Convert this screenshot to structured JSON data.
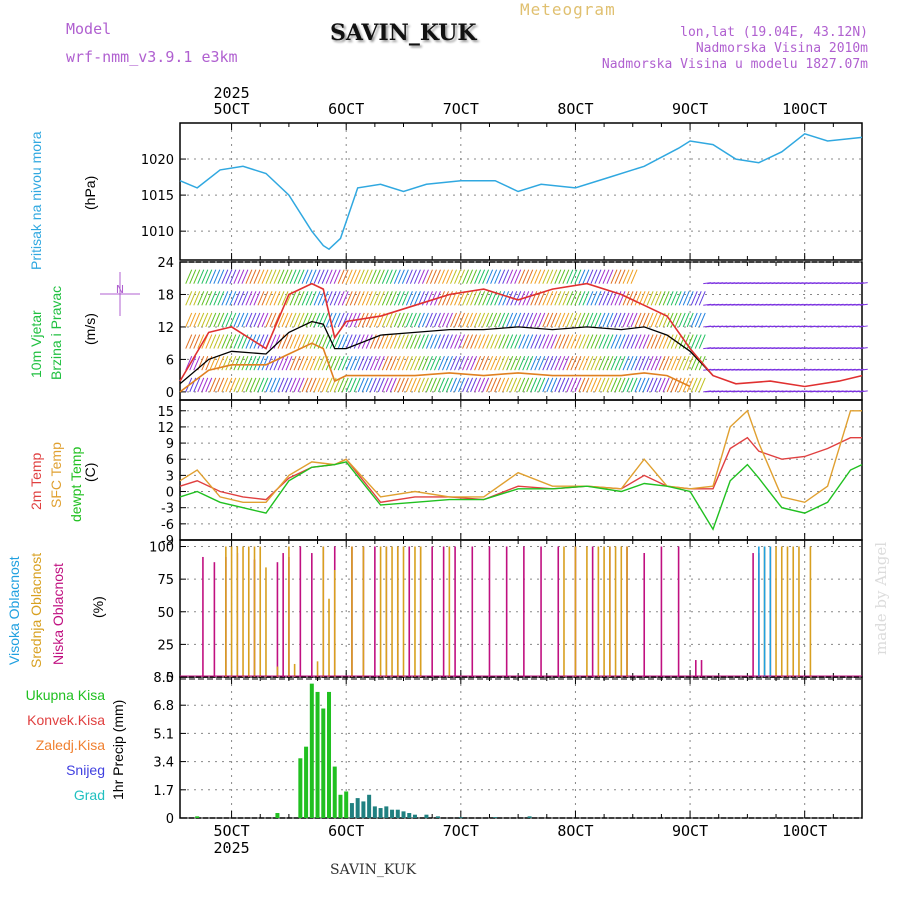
{
  "header": {
    "model_label": "Model",
    "model_name": "wrf-nmm_v3.9.1 e3km",
    "title": "SAVIN_KUK",
    "meteogram_label": "Meteogram",
    "lonlat": "lon,lat (19.04E, 43.12N)",
    "altitude": "Nadmorska Visina 2010m",
    "model_altitude": "Nadmorska Visina u modelu 1827.07m"
  },
  "footer": {
    "station": "SAVIN_KUK",
    "made_by": "made by Angel"
  },
  "colors": {
    "pressure": "#30a8e0",
    "wind_label": "#20c040",
    "mean_wind": "#000000",
    "gust": "#e03030",
    "temp2m": "#e04040",
    "sfc_temp": "#e0a030",
    "dewpt": "#20c020",
    "cloud_high": "#20a0e0",
    "cloud_mid": "#d8a020",
    "cloud_low": "#c01080",
    "precip_total": "#20c020",
    "precip_conv": "#e04040",
    "precip_frozen": "#f08030",
    "precip_snow": "#4040e0",
    "precip_hail": "#20c0c0"
  },
  "chart_data": [
    {
      "type": "line",
      "name": "pressure",
      "title": "Pritisak na nivou mora",
      "ylabel": "(hPa)",
      "ylim": [
        1006,
        1025
      ],
      "yticks": [
        1010,
        1015,
        1020
      ],
      "x_days_top": [
        "5OCT",
        "6OCT",
        "7OCT",
        "8OCT",
        "9OCT",
        "10OCT"
      ],
      "year_label": "2025",
      "x": [
        4.55,
        4.7,
        4.9,
        5.1,
        5.3,
        5.5,
        5.7,
        5.8,
        5.85,
        5.95,
        6.1,
        6.3,
        6.5,
        6.7,
        7.0,
        7.3,
        7.5,
        7.7,
        8.0,
        8.3,
        8.6,
        8.9,
        9.0,
        9.2,
        9.4,
        9.6,
        9.8,
        10.0,
        10.2,
        10.5
      ],
      "values": [
        1017,
        1016,
        1018.5,
        1019,
        1018,
        1015,
        1010,
        1008,
        1007.5,
        1009,
        1016,
        1016.5,
        1015.5,
        1016.5,
        1017,
        1017,
        1015.5,
        1016.5,
        1016,
        1017.5,
        1019,
        1021.5,
        1022.5,
        1022,
        1020,
        1019.5,
        1021,
        1023.5,
        1022.5,
        1023
      ]
    },
    {
      "type": "line",
      "name": "wind",
      "title": "10m Vjetar Brzina i Pravac",
      "ylabel": "(m/s)",
      "ylim": [
        -1.5,
        24
      ],
      "yticks": [
        0,
        6,
        12,
        18,
        24
      ],
      "compass_label": "N",
      "series": [
        {
          "name": "mean",
          "x": [
            4.55,
            4.8,
            5.0,
            5.3,
            5.5,
            5.7,
            5.8,
            5.9,
            6.0,
            6.3,
            6.6,
            6.9,
            7.2,
            7.5,
            7.8,
            8.1,
            8.4,
            8.6,
            8.8,
            9.0,
            9.2
          ],
          "values": [
            1.5,
            6,
            7.5,
            7,
            11,
            13,
            12.5,
            8,
            8,
            10.5,
            11,
            11.5,
            11.5,
            12,
            11.5,
            12,
            11.5,
            12,
            10.5,
            7.5,
            3
          ]
        },
        {
          "name": "gust",
          "x": [
            4.55,
            4.8,
            5.0,
            5.3,
            5.5,
            5.7,
            5.8,
            5.9,
            6.0,
            6.3,
            6.6,
            6.9,
            7.2,
            7.5,
            7.8,
            8.1,
            8.4,
            8.6,
            8.8,
            9.0,
            9.2,
            9.4,
            9.7,
            10.0,
            10.3,
            10.5
          ],
          "values": [
            2,
            11,
            12,
            8,
            18,
            20,
            19,
            10,
            13,
            14,
            16,
            18,
            19,
            17,
            19,
            20,
            18,
            16,
            14,
            8,
            3,
            1.5,
            2,
            1,
            2,
            3
          ]
        },
        {
          "name": "low",
          "x": [
            4.55,
            4.8,
            5.0,
            5.3,
            5.5,
            5.7,
            5.8,
            5.9,
            6.0,
            6.3,
            6.6,
            6.9,
            7.2,
            7.5,
            7.8,
            8.1,
            8.4,
            8.6,
            8.8,
            9.0
          ],
          "values": [
            0,
            4,
            5,
            5,
            7,
            9,
            8,
            2,
            3,
            3,
            3,
            3.5,
            3,
            3.5,
            3,
            3,
            3,
            3.5,
            3,
            1
          ]
        }
      ]
    },
    {
      "type": "line",
      "name": "temperature",
      "title": "2m Temp / SFC Temp / dewpt Temp",
      "ylabel": "(C)",
      "ylim": [
        -9,
        17
      ],
      "yticks": [
        -9,
        -6,
        -3,
        0,
        3,
        6,
        9,
        12,
        15
      ],
      "series": [
        {
          "name": "2m Temp",
          "x": [
            4.55,
            4.7,
            4.9,
            5.1,
            5.3,
            5.5,
            5.7,
            5.9,
            6.0,
            6.3,
            6.6,
            6.9,
            7.2,
            7.5,
            7.8,
            8.1,
            8.4,
            8.6,
            8.8,
            9.0,
            9.2,
            9.35,
            9.5,
            9.6,
            9.8,
            10.0,
            10.2,
            10.4,
            10.5
          ],
          "values": [
            1,
            2,
            0,
            -1,
            -1.5,
            2.5,
            4.5,
            5,
            6,
            -2,
            -1,
            -1,
            -1.5,
            1,
            0.5,
            1,
            0.5,
            3,
            1,
            0.5,
            0.5,
            8,
            10,
            7.5,
            6,
            6.5,
            8,
            10,
            10
          ]
        },
        {
          "name": "SFC Temp",
          "x": [
            4.55,
            4.7,
            4.9,
            5.1,
            5.3,
            5.5,
            5.7,
            5.9,
            6.0,
            6.3,
            6.6,
            6.9,
            7.2,
            7.5,
            7.8,
            8.1,
            8.4,
            8.6,
            8.8,
            9.0,
            9.2,
            9.35,
            9.5,
            9.6,
            9.8,
            10.0,
            10.2,
            10.4,
            10.5
          ],
          "values": [
            2,
            4,
            -1,
            -2,
            -2,
            3,
            5.5,
            5,
            6,
            -1,
            0,
            -1,
            -1,
            3.5,
            1,
            1,
            0.5,
            6,
            1,
            0.5,
            1,
            12,
            15,
            9,
            -1,
            -2,
            1,
            15,
            15
          ]
        },
        {
          "name": "dewpt Temp",
          "x": [
            4.55,
            4.7,
            4.9,
            5.1,
            5.3,
            5.5,
            5.7,
            5.9,
            6.0,
            6.3,
            6.6,
            6.9,
            7.2,
            7.5,
            7.8,
            8.1,
            8.4,
            8.6,
            8.8,
            9.0,
            9.2,
            9.35,
            9.5,
            9.6,
            9.8,
            10.0,
            10.2,
            10.4,
            10.5
          ],
          "values": [
            -1,
            0,
            -2,
            -3,
            -4,
            2,
            4.5,
            5,
            5.5,
            -2.5,
            -2,
            -1.5,
            -1.5,
            0.5,
            0.5,
            1,
            0,
            1.5,
            1,
            0,
            -7,
            2,
            5,
            2.5,
            -3,
            -4,
            -2,
            4,
            5
          ]
        }
      ]
    },
    {
      "type": "bar",
      "name": "clouds",
      "title": "Visoka Oblacnost / Srednja Oblacnost / Niska Oblacnost",
      "ylabel": "(%)",
      "ylim": [
        0,
        105
      ],
      "yticks": [
        0,
        25,
        50,
        75,
        100
      ],
      "series": [
        {
          "name": "Niska Oblacnost",
          "x": [
            4.75,
            4.85,
            4.95,
            5.05,
            5.2,
            5.4,
            5.45,
            5.5,
            5.6,
            5.7,
            5.8,
            5.9,
            6.05,
            6.15,
            6.25,
            6.35,
            6.45,
            6.55,
            6.65,
            6.75,
            6.85,
            6.95,
            7.1,
            7.25,
            7.4,
            7.55,
            7.7,
            7.85,
            8.0,
            8.15,
            8.3,
            8.45,
            8.6,
            8.75,
            8.9,
            9.05,
            9.1,
            9.55,
            9.6,
            9.7
          ],
          "values": [
            92,
            88,
            92,
            95,
            90,
            88,
            95,
            92,
            100,
            95,
            100,
            100,
            100,
            100,
            100,
            100,
            100,
            100,
            100,
            100,
            100,
            100,
            100,
            100,
            100,
            100,
            100,
            100,
            100,
            100,
            100,
            100,
            95,
            100,
            100,
            13,
            13,
            95,
            95,
            100
          ]
        },
        {
          "name": "Srednja Oblacnost",
          "x": [
            4.95,
            5.0,
            5.05,
            5.1,
            5.15,
            5.2,
            5.25,
            5.3,
            5.4,
            5.5,
            5.55,
            5.75,
            5.8,
            5.85,
            5.9,
            6.05,
            6.15,
            6.3,
            6.35,
            6.4,
            6.45,
            6.5,
            6.6,
            6.65,
            6.9,
            7.9,
            8.0,
            8.1,
            8.2,
            8.25,
            8.3,
            8.35,
            8.4,
            8.45,
            9.65,
            9.7,
            9.75,
            9.8,
            9.85,
            9.9,
            9.95,
            10.05
          ],
          "values": [
            100,
            100,
            100,
            100,
            100,
            100,
            100,
            84,
            8,
            100,
            10,
            12,
            100,
            60,
            82,
            100,
            100,
            100,
            100,
            100,
            100,
            100,
            100,
            100,
            100,
            100,
            100,
            100,
            100,
            100,
            100,
            100,
            100,
            100,
            100,
            100,
            100,
            100,
            100,
            100,
            100,
            100
          ]
        },
        {
          "name": "Visoka Oblacnost",
          "x": [
            9.6,
            9.65,
            9.7
          ],
          "values": [
            100,
            100,
            100
          ]
        }
      ]
    },
    {
      "type": "bar",
      "name": "precipitation",
      "title": "1hr Precip",
      "ylabel": "(mm)",
      "ylim": [
        0,
        8.5
      ],
      "yticks": [
        0,
        1.7,
        3.4,
        5.1,
        6.8,
        8.5
      ],
      "x_days_bottom": [
        "5OCT",
        "6OCT",
        "7OCT",
        "8OCT",
        "9OCT",
        "10OCT"
      ],
      "year_label": "2025",
      "x": [
        4.7,
        5.4,
        5.6,
        5.65,
        5.7,
        5.75,
        5.8,
        5.85,
        5.9,
        5.95,
        6.0,
        6.05,
        6.1,
        6.15,
        6.2,
        6.25,
        6.3,
        6.35,
        6.4,
        6.45,
        6.5,
        6.55,
        6.6,
        6.7,
        6.8,
        7.0,
        7.3,
        7.6
      ],
      "values": [
        0.1,
        0.3,
        3.6,
        4.3,
        8.1,
        7.6,
        6.6,
        7.6,
        3.1,
        1.4,
        1.6,
        0.9,
        1.2,
        1.0,
        1.4,
        0.7,
        0.6,
        0.7,
        0.5,
        0.5,
        0.4,
        0.3,
        0.2,
        0.2,
        0.1,
        0.05,
        0.05,
        0.1
      ],
      "legend": [
        "Ukupna Kisa",
        "Konvek.Kisa",
        "Zaledj.Kisa",
        "Snijeg",
        "Grad"
      ]
    }
  ]
}
